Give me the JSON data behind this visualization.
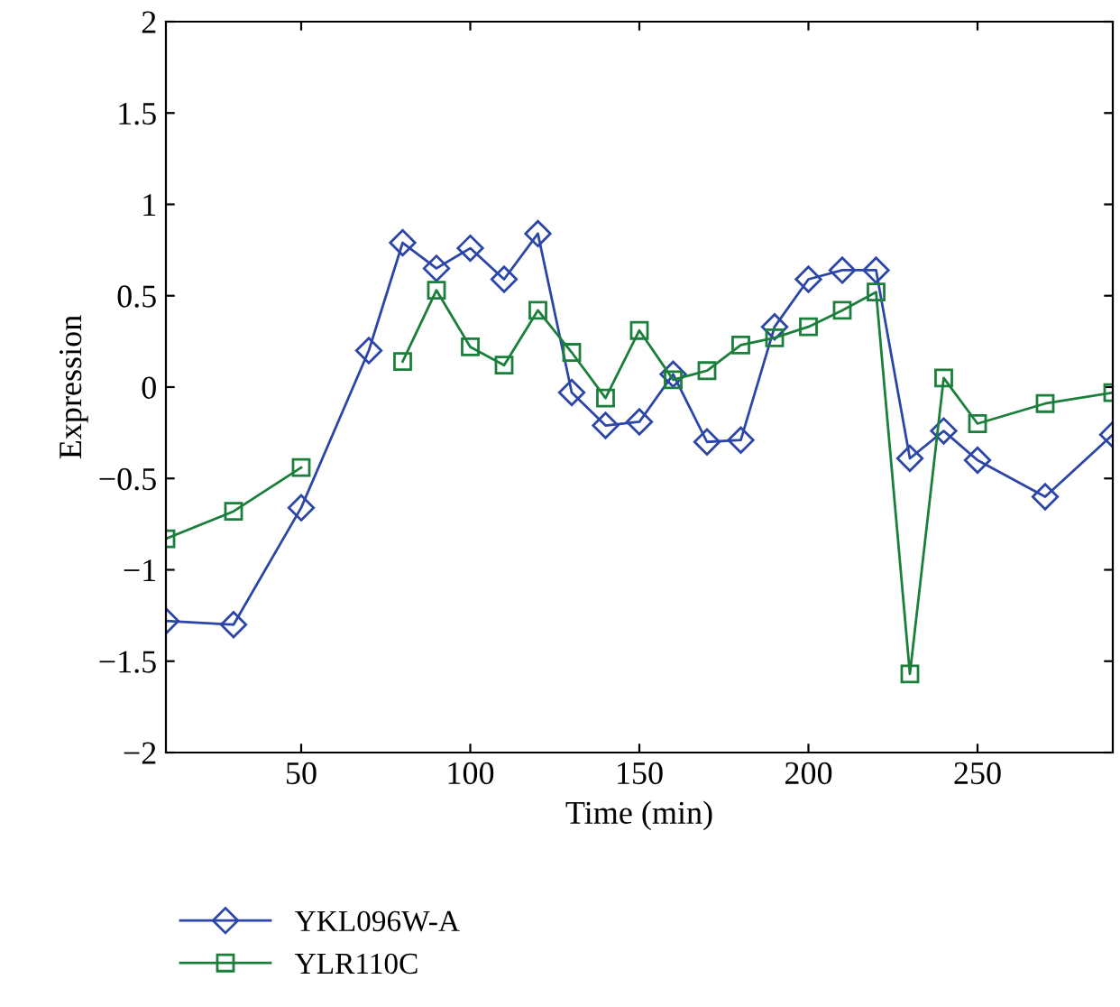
{
  "chart_data": {
    "type": "line",
    "xlabel": "Time (min)",
    "ylabel": "Expression",
    "x": [
      10,
      30,
      50,
      70,
      80,
      90,
      100,
      110,
      120,
      130,
      140,
      150,
      160,
      170,
      180,
      190,
      200,
      210,
      220,
      230,
      240,
      250,
      270,
      290
    ],
    "series": [
      {
        "name": "YKL096W-A",
        "color": "#2b45a8",
        "marker": "diamond",
        "values": [
          -1.28,
          -1.3,
          -0.66,
          0.2,
          0.79,
          0.65,
          0.76,
          0.59,
          0.84,
          -0.03,
          -0.21,
          -0.19,
          0.07,
          -0.3,
          -0.29,
          0.33,
          0.59,
          0.64,
          0.64,
          -0.39,
          -0.24,
          -0.4,
          -0.6,
          -0.26
        ]
      },
      {
        "name": "YLR110C",
        "color": "#1a7f3a",
        "marker": "square",
        "values": [
          -0.83,
          -0.68,
          -0.44,
          null,
          0.14,
          0.53,
          0.22,
          0.12,
          0.42,
          0.19,
          -0.06,
          0.31,
          0.04,
          0.09,
          0.23,
          0.27,
          0.33,
          0.42,
          0.52,
          -1.57,
          0.05,
          -0.2,
          -0.09,
          -0.03
        ]
      }
    ],
    "xlim": [
      10,
      290
    ],
    "xticks": [
      50,
      100,
      150,
      200,
      250
    ],
    "ylim": [
      -2,
      2
    ],
    "yticks": [
      {
        "value": -2,
        "label": "−2"
      },
      {
        "value": -1.5,
        "label": "−1.5"
      },
      {
        "value": -1,
        "label": "−1"
      },
      {
        "value": -0.5,
        "label": "−0.5"
      },
      0,
      0.5,
      1,
      1.5,
      2
    ],
    "grid": false,
    "legend": "bottom left",
    "line_style": "solid"
  }
}
